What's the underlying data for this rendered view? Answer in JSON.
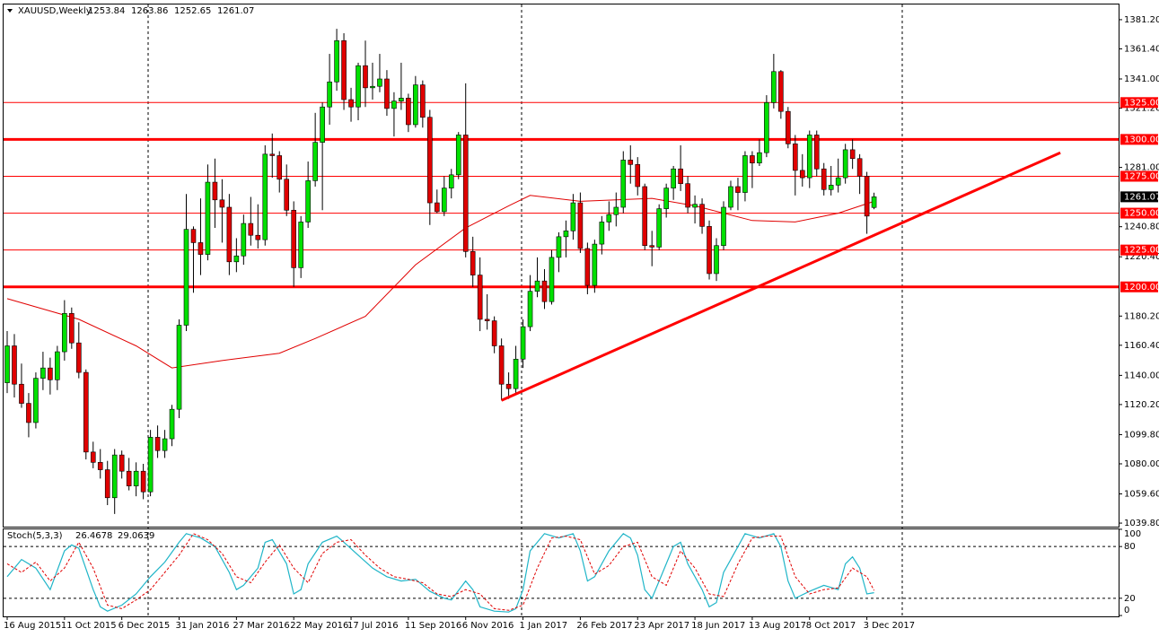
{
  "chart_data": {
    "type": "candlestick",
    "title": "XAUUSD,Weekly",
    "categories": [
      "16 Aug 2015",
      null,
      null,
      null,
      null,
      null,
      null,
      null,
      "11 Oct 2015",
      null,
      null,
      null,
      null,
      null,
      null,
      null,
      "6 Dec 2015",
      null,
      null,
      null,
      null,
      null,
      null,
      null,
      "31 Jan 2016",
      null,
      null,
      null,
      null,
      null,
      null,
      null,
      "27 Mar 2016",
      null,
      null,
      null,
      null,
      null,
      null,
      null,
      "22 May 2016",
      null,
      null,
      null,
      null,
      null,
      null,
      null,
      "17 Jul 2016",
      null,
      null,
      null,
      null,
      null,
      null,
      null,
      "11 Sep 2016",
      null,
      null,
      null,
      null,
      null,
      null,
      null,
      "6 Nov 2016",
      null,
      null,
      null,
      null,
      null,
      null,
      null,
      "1 Jan 2017",
      null,
      null,
      null,
      null,
      null,
      null,
      null,
      "26 Feb 2017",
      null,
      null,
      null,
      null,
      null,
      null,
      null,
      "23 Apr 2017",
      null,
      null,
      null,
      null,
      null,
      null,
      null,
      "18 Jun 2017",
      null,
      null,
      null,
      null,
      null,
      null,
      null,
      "13 Aug 2017",
      null,
      null,
      null,
      null,
      null,
      null,
      null,
      "8 Oct 2017",
      null,
      null,
      null,
      null,
      null,
      null,
      null,
      "3 Dec 2017",
      null
    ],
    "candles": [
      [
        1135,
        1170,
        1128,
        1160
      ],
      [
        1160,
        1168,
        1125,
        1134
      ],
      [
        1134,
        1148,
        1118,
        1121
      ],
      [
        1121,
        1128,
        1098,
        1108
      ],
      [
        1108,
        1142,
        1104,
        1138
      ],
      [
        1138,
        1156,
        1130,
        1145
      ],
      [
        1145,
        1152,
        1127,
        1137
      ],
      [
        1137,
        1160,
        1130,
        1156
      ],
      [
        1156,
        1191,
        1150,
        1182
      ],
      [
        1182,
        1186,
        1158,
        1162
      ],
      [
        1162,
        1176,
        1138,
        1142
      ],
      [
        1142,
        1144,
        1083,
        1088
      ],
      [
        1088,
        1095,
        1077,
        1081
      ],
      [
        1081,
        1090,
        1070,
        1076
      ],
      [
        1076,
        1082,
        1052,
        1057
      ],
      [
        1057,
        1090,
        1046,
        1086
      ],
      [
        1086,
        1089,
        1070,
        1075
      ],
      [
        1075,
        1084,
        1062,
        1065
      ],
      [
        1065,
        1081,
        1058,
        1075
      ],
      [
        1075,
        1080,
        1056,
        1061
      ],
      [
        1061,
        1103,
        1058,
        1098
      ],
      [
        1098,
        1106,
        1084,
        1089
      ],
      [
        1089,
        1103,
        1084,
        1097
      ],
      [
        1097,
        1120,
        1092,
        1117
      ],
      [
        1117,
        1178,
        1111,
        1174
      ],
      [
        1174,
        1263,
        1170,
        1239
      ],
      [
        1239,
        1241,
        1196,
        1230
      ],
      [
        1230,
        1260,
        1208,
        1222
      ],
      [
        1222,
        1283,
        1218,
        1271
      ],
      [
        1271,
        1287,
        1240,
        1259
      ],
      [
        1259,
        1273,
        1230,
        1254
      ],
      [
        1254,
        1263,
        1208,
        1217
      ],
      [
        1217,
        1233,
        1210,
        1221
      ],
      [
        1221,
        1249,
        1215,
        1243
      ],
      [
        1243,
        1261,
        1228,
        1235
      ],
      [
        1235,
        1256,
        1226,
        1232
      ],
      [
        1232,
        1296,
        1228,
        1290
      ],
      [
        1290,
        1304,
        1274,
        1289
      ],
      [
        1289,
        1292,
        1264,
        1273
      ],
      [
        1273,
        1283,
        1248,
        1252
      ],
      [
        1252,
        1258,
        1200,
        1213
      ],
      [
        1213,
        1248,
        1206,
        1244
      ],
      [
        1244,
        1285,
        1240,
        1272
      ],
      [
        1272,
        1318,
        1268,
        1298
      ],
      [
        1298,
        1325,
        1252,
        1322
      ],
      [
        1322,
        1358,
        1310,
        1339
      ],
      [
        1339,
        1375,
        1333,
        1367
      ],
      [
        1367,
        1372,
        1320,
        1327
      ],
      [
        1327,
        1335,
        1312,
        1322
      ],
      [
        1322,
        1352,
        1313,
        1350
      ],
      [
        1350,
        1367,
        1322,
        1335
      ],
      [
        1335,
        1352,
        1327,
        1336
      ],
      [
        1336,
        1358,
        1332,
        1341
      ],
      [
        1341,
        1347,
        1316,
        1321
      ],
      [
        1321,
        1332,
        1302,
        1326
      ],
      [
        1326,
        1352,
        1320,
        1328
      ],
      [
        1328,
        1331,
        1305,
        1310
      ],
      [
        1310,
        1343,
        1308,
        1337
      ],
      [
        1337,
        1340,
        1308,
        1315
      ],
      [
        1315,
        1320,
        1242,
        1257
      ],
      [
        1257,
        1266,
        1250,
        1251
      ],
      [
        1251,
        1275,
        1248,
        1267
      ],
      [
        1267,
        1280,
        1260,
        1276
      ],
      [
        1276,
        1305,
        1273,
        1303
      ],
      [
        1303,
        1338,
        1220,
        1224
      ],
      [
        1224,
        1234,
        1200,
        1208
      ],
      [
        1208,
        1220,
        1170,
        1178
      ],
      [
        1178,
        1195,
        1171,
        1177
      ],
      [
        1177,
        1180,
        1155,
        1160
      ],
      [
        1160,
        1165,
        1123,
        1134
      ],
      [
        1134,
        1142,
        1124,
        1131
      ],
      [
        1131,
        1160,
        1128,
        1151
      ],
      [
        1151,
        1178,
        1145,
        1173
      ],
      [
        1173,
        1208,
        1170,
        1197
      ],
      [
        1197,
        1220,
        1193,
        1204
      ],
      [
        1204,
        1212,
        1185,
        1190
      ],
      [
        1190,
        1225,
        1188,
        1220
      ],
      [
        1220,
        1237,
        1210,
        1234
      ],
      [
        1234,
        1245,
        1220,
        1238
      ],
      [
        1238,
        1263,
        1232,
        1257
      ],
      [
        1257,
        1264,
        1223,
        1226
      ],
      [
        1226,
        1230,
        1195,
        1201
      ],
      [
        1201,
        1232,
        1196,
        1229
      ],
      [
        1229,
        1248,
        1222,
        1244
      ],
      [
        1244,
        1258,
        1238,
        1249
      ],
      [
        1249,
        1264,
        1241,
        1254
      ],
      [
        1254,
        1292,
        1250,
        1286
      ],
      [
        1286,
        1296,
        1270,
        1283
      ],
      [
        1283,
        1288,
        1262,
        1268
      ],
      [
        1268,
        1270,
        1225,
        1228
      ],
      [
        1228,
        1238,
        1214,
        1227
      ],
      [
        1227,
        1256,
        1225,
        1253
      ],
      [
        1253,
        1270,
        1247,
        1267
      ],
      [
        1267,
        1282,
        1259,
        1280
      ],
      [
        1280,
        1296,
        1265,
        1270
      ],
      [
        1270,
        1275,
        1250,
        1254
      ],
      [
        1254,
        1262,
        1243,
        1256
      ],
      [
        1256,
        1260,
        1236,
        1241
      ],
      [
        1241,
        1245,
        1205,
        1209
      ],
      [
        1209,
        1233,
        1204,
        1228
      ],
      [
        1228,
        1258,
        1225,
        1254
      ],
      [
        1254,
        1272,
        1252,
        1268
      ],
      [
        1268,
        1274,
        1252,
        1264
      ],
      [
        1264,
        1292,
        1258,
        1289
      ],
      [
        1289,
        1292,
        1267,
        1284
      ],
      [
        1284,
        1300,
        1282,
        1291
      ],
      [
        1291,
        1330,
        1288,
        1325
      ],
      [
        1325,
        1358,
        1321,
        1346
      ],
      [
        1346,
        1347,
        1314,
        1319
      ],
      [
        1319,
        1322,
        1294,
        1297
      ],
      [
        1297,
        1303,
        1262,
        1279
      ],
      [
        1279,
        1290,
        1268,
        1274
      ],
      [
        1274,
        1306,
        1267,
        1303
      ],
      [
        1303,
        1306,
        1275,
        1280
      ],
      [
        1280,
        1284,
        1262,
        1266
      ],
      [
        1266,
        1282,
        1262,
        1269
      ],
      [
        1269,
        1287,
        1264,
        1274
      ],
      [
        1274,
        1297,
        1270,
        1293
      ],
      [
        1293,
        1300,
        1280,
        1287
      ],
      [
        1287,
        1290,
        1263,
        1275
      ],
      [
        1275,
        1278,
        1236,
        1248
      ],
      [
        1253.84,
        1263.86,
        1252.65,
        1261.07
      ]
    ],
    "up_color": "#00e000",
    "down_color": "#e00000",
    "ylim": [
      1037.4,
      1391.5
    ],
    "yticks": [
      {
        "value": 1381.2,
        "label": "1381.20"
      },
      {
        "value": 1361.4,
        "label": "1361.40"
      },
      {
        "value": 1341,
        "label": "1341.00"
      },
      {
        "value": 1321.2,
        "label": "1321.20"
      },
      {
        "value": 1281,
        "label": "1281.00"
      },
      {
        "value": 1240.8,
        "label": "1240.80"
      },
      {
        "value": 1220.4,
        "label": "1220.40"
      },
      {
        "value": 1180.2,
        "label": "1180.20"
      },
      {
        "value": 1160.4,
        "label": "1160.40"
      },
      {
        "value": 1140,
        "label": "1140.00"
      },
      {
        "value": 1120.2,
        "label": "1120.20"
      },
      {
        "value": 1099.8,
        "label": "1099.80"
      },
      {
        "value": 1080,
        "label": "1080.00"
      },
      {
        "value": 1059.6,
        "label": "1059.60"
      },
      {
        "value": 1039.8,
        "label": "1039.80"
      }
    ],
    "levels": [
      {
        "value": 1325,
        "label": "1325.00",
        "thick": false
      },
      {
        "value": 1300,
        "label": "1300.00",
        "thick": true
      },
      {
        "value": 1275,
        "label": "1275.00",
        "thick": false
      },
      {
        "value": 1250,
        "label": "1250.00",
        "thick": false
      },
      {
        "value": 1225,
        "label": "1225.00",
        "thick": false
      },
      {
        "value": 1200,
        "label": "1200.00",
        "thick": true
      }
    ],
    "level_color": "#ff0000",
    "ma": {
      "color": "#e00000",
      "x": [
        0,
        10,
        18,
        23,
        30,
        38,
        43,
        50,
        57,
        64,
        70,
        73,
        80,
        90,
        96,
        104,
        110,
        116,
        121
      ],
      "values": [
        1192,
        1178,
        1160,
        1145,
        1150,
        1155,
        1165,
        1180,
        1215,
        1240,
        1255,
        1262,
        1258,
        1260,
        1255,
        1245,
        1244,
        1250,
        1258
      ]
    },
    "trendline": {
      "color": "#ff0000",
      "x": [
        69,
        147
      ],
      "values": [
        1123,
        1291
      ]
    },
    "stoch": {
      "label": "Stoch(5,3,3)",
      "ylim": [
        -1,
        101
      ],
      "yticks": [
        100,
        80,
        20,
        0
      ],
      "levels": [
        80,
        20
      ],
      "main": {
        "color": "#1fb5c8",
        "x": [
          0,
          2,
          4,
          6,
          8,
          9,
          10,
          12,
          13,
          14,
          16,
          18,
          20,
          22,
          24,
          25,
          27,
          29,
          31,
          32,
          33,
          35,
          36,
          37,
          39,
          40,
          41,
          42,
          44,
          46,
          47,
          49,
          51,
          53,
          55,
          57,
          59,
          61,
          62,
          64,
          65,
          66,
          68,
          70,
          71,
          72,
          73,
          75,
          77,
          79,
          80,
          81,
          82,
          84,
          86,
          87,
          88,
          89,
          90,
          91,
          93,
          94,
          95,
          97,
          98,
          99,
          100,
          102,
          103,
          105,
          107,
          108,
          109,
          110,
          112,
          114,
          116,
          117,
          118,
          119,
          120,
          121
        ],
        "values": [
          45,
          65,
          55,
          30,
          75,
          82,
          78,
          30,
          10,
          5,
          12,
          25,
          45,
          62,
          85,
          95,
          90,
          80,
          50,
          30,
          35,
          55,
          85,
          88,
          60,
          25,
          30,
          60,
          85,
          92,
          85,
          70,
          55,
          45,
          40,
          42,
          28,
          20,
          18,
          40,
          30,
          10,
          5,
          4,
          8,
          30,
          75,
          95,
          90,
          95,
          75,
          40,
          45,
          75,
          95,
          90,
          70,
          30,
          20,
          40,
          80,
          85,
          60,
          30,
          10,
          15,
          50,
          80,
          95,
          90,
          95,
          80,
          40,
          20,
          28,
          35,
          30,
          60,
          68,
          55,
          25,
          26.4678
        ]
      },
      "signal": {
        "color": "#e00000",
        "x": [
          0,
          2,
          4,
          6,
          8,
          10,
          12,
          14,
          16,
          18,
          20,
          22,
          24,
          26,
          28,
          30,
          32,
          34,
          36,
          38,
          40,
          42,
          44,
          46,
          48,
          50,
          52,
          54,
          56,
          58,
          60,
          62,
          64,
          66,
          68,
          70,
          72,
          74,
          76,
          78,
          80,
          82,
          84,
          86,
          88,
          90,
          92,
          94,
          96,
          98,
          100,
          102,
          104,
          106,
          108,
          110,
          112,
          114,
          116,
          118,
          120,
          121
        ],
        "values": [
          60,
          50,
          62,
          40,
          55,
          85,
          55,
          12,
          8,
          18,
          30,
          50,
          70,
          95,
          88,
          72,
          45,
          38,
          62,
          82,
          55,
          38,
          72,
          85,
          88,
          70,
          55,
          45,
          42,
          38,
          25,
          22,
          30,
          25,
          8,
          6,
          12,
          55,
          90,
          92,
          88,
          48,
          58,
          80,
          85,
          45,
          35,
          75,
          55,
          25,
          22,
          60,
          90,
          92,
          92,
          45,
          25,
          30,
          32,
          55,
          45,
          29.0639
        ]
      }
    }
  }
}
